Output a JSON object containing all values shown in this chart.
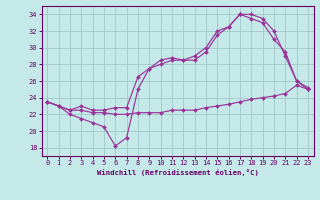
{
  "xlabel": "Windchill (Refroidissement éolien,°C)",
  "xlim": [
    -0.5,
    23.5
  ],
  "ylim": [
    17,
    35
  ],
  "yticks": [
    18,
    20,
    22,
    24,
    26,
    28,
    30,
    32,
    34
  ],
  "xticks": [
    0,
    1,
    2,
    3,
    4,
    5,
    6,
    7,
    8,
    9,
    10,
    11,
    12,
    13,
    14,
    15,
    16,
    17,
    18,
    19,
    20,
    21,
    22,
    23
  ],
  "bg_color": "#c5e8e8",
  "grid_color": "#a0c8c8",
  "line_color": "#993399",
  "lines": [
    {
      "x": [
        0,
        1,
        2,
        3,
        4,
        5,
        6,
        7,
        8,
        9,
        10,
        11,
        12,
        13,
        14,
        15,
        16,
        17,
        18,
        19,
        20,
        21,
        22,
        23
      ],
      "y": [
        23.5,
        23.0,
        22.5,
        22.5,
        22.2,
        22.2,
        22.0,
        22.0,
        22.2,
        22.2,
        22.2,
        22.5,
        22.5,
        22.5,
        22.8,
        23.0,
        23.2,
        23.5,
        23.8,
        24.0,
        24.2,
        24.5,
        25.5,
        25.0
      ]
    },
    {
      "x": [
        0,
        1,
        2,
        3,
        4,
        5,
        6,
        7,
        8,
        9,
        10,
        11,
        12,
        13,
        14,
        15,
        16,
        17,
        18,
        19,
        20,
        21,
        22,
        23
      ],
      "y": [
        23.5,
        23.0,
        22.0,
        21.5,
        21.0,
        20.5,
        18.2,
        19.2,
        25.0,
        27.5,
        28.5,
        28.8,
        28.5,
        28.5,
        29.5,
        31.5,
        32.5,
        34.0,
        34.0,
        33.5,
        32.0,
        29.0,
        26.0,
        25.0
      ]
    },
    {
      "x": [
        0,
        1,
        2,
        3,
        4,
        5,
        6,
        7,
        8,
        9,
        10,
        11,
        12,
        13,
        14,
        15,
        16,
        17,
        18,
        19,
        20,
        21,
        22,
        23
      ],
      "y": [
        23.5,
        23.0,
        22.5,
        23.0,
        22.5,
        22.5,
        22.8,
        22.8,
        26.5,
        27.5,
        28.0,
        28.5,
        28.5,
        29.0,
        30.0,
        32.0,
        32.5,
        34.0,
        33.5,
        33.0,
        31.0,
        29.5,
        26.0,
        25.2
      ]
    }
  ]
}
